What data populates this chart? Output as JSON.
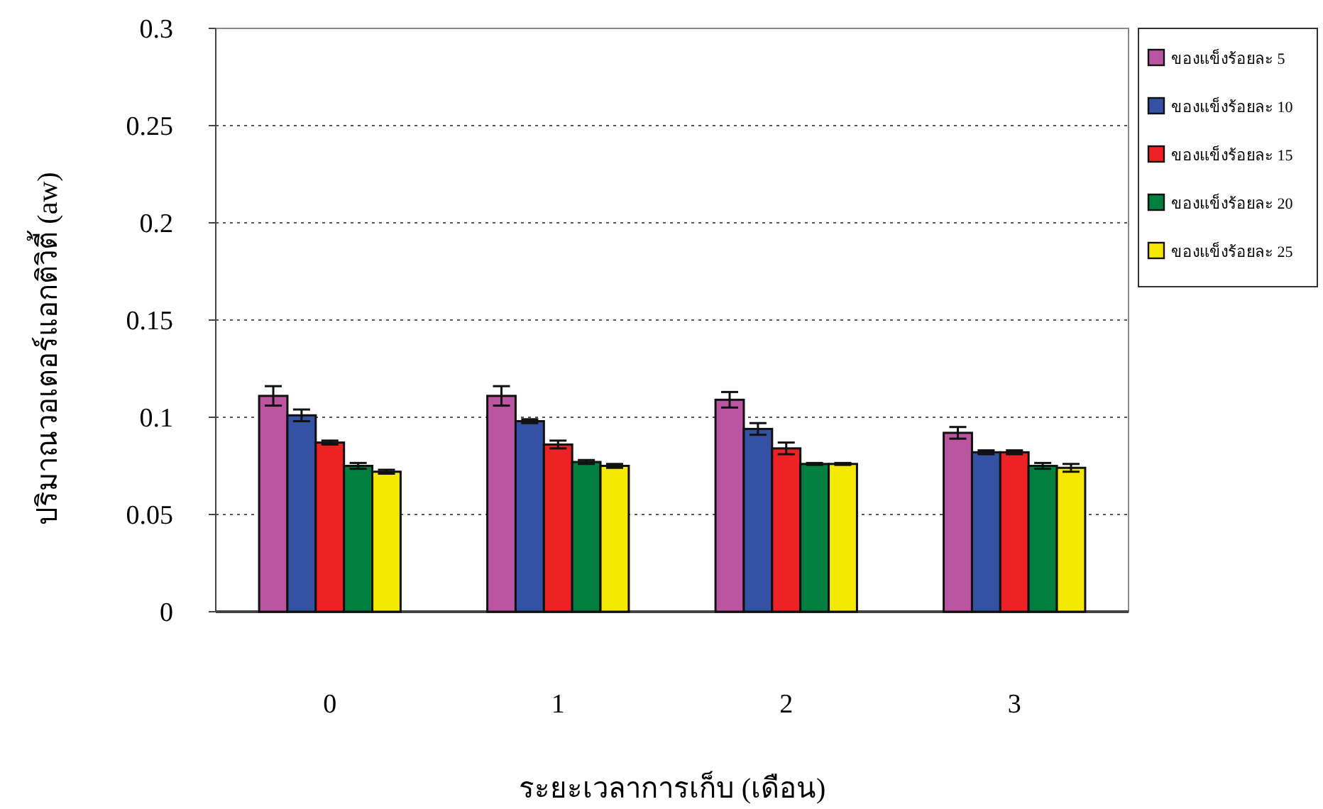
{
  "chart_data": {
    "type": "bar",
    "xlabel": "ระยะเวลาการเก็บ (เดือน)",
    "ylabel": "ปริมาณวอเตอร์แอกติวิตี้ (aw)",
    "categories": [
      "0",
      "1",
      "2",
      "3"
    ],
    "series": [
      {
        "name": "ของแข็งร้อยละ 5",
        "color": "#bb55a0",
        "values": [
          0.111,
          0.111,
          0.109,
          0.092
        ],
        "errors": [
          0.005,
          0.005,
          0.004,
          0.003
        ]
      },
      {
        "name": "ของแข็งร้อยละ 10",
        "color": "#3452a4",
        "values": [
          0.101,
          0.098,
          0.094,
          0.082
        ],
        "errors": [
          0.003,
          0.001,
          0.003,
          0.001
        ]
      },
      {
        "name": "ของแข็งร้อยละ 15",
        "color": "#ee2225",
        "values": [
          0.087,
          0.086,
          0.084,
          0.082
        ],
        "errors": [
          0.001,
          0.002,
          0.003,
          0.001
        ]
      },
      {
        "name": "ของแข็งร้อยละ 20",
        "color": "#007f3f",
        "values": [
          0.075,
          0.077,
          0.076,
          0.075
        ],
        "errors": [
          0.0015,
          0.001,
          0.0005,
          0.0015
        ]
      },
      {
        "name": "ของแข็งร้อยละ 25",
        "color": "#f5e900",
        "values": [
          0.072,
          0.075,
          0.076,
          0.074
        ],
        "errors": [
          0.001,
          0.001,
          0.0005,
          0.002
        ]
      }
    ],
    "ylim": [
      0,
      0.3
    ],
    "yticks": [
      0,
      0.05,
      0.1,
      0.15,
      0.2,
      0.25,
      0.3
    ],
    "grid": "y",
    "legend": "right"
  }
}
